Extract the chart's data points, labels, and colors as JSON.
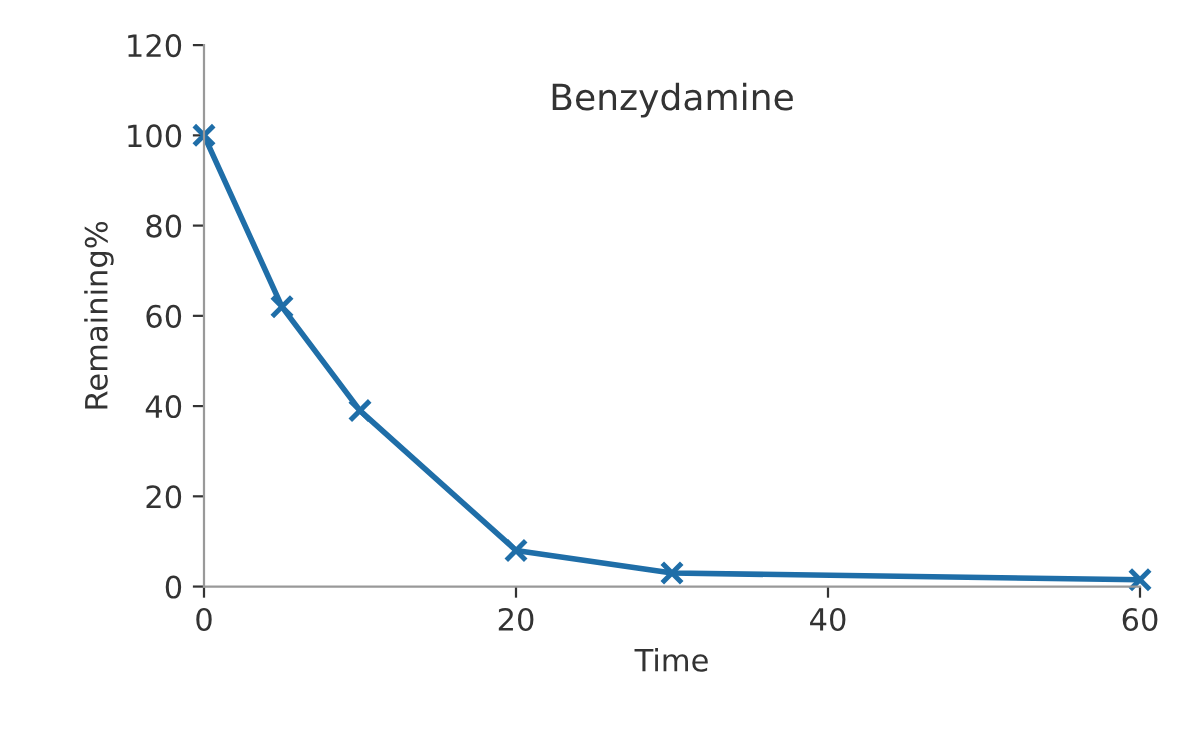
{
  "chart_data": {
    "type": "line",
    "title": "Benzydamine",
    "xlabel": "Time",
    "ylabel": "Remaining%",
    "x": [
      0,
      5,
      10,
      20,
      30,
      60
    ],
    "series": [
      {
        "color": "#1f6ea8",
        "values": [
          100,
          62,
          39,
          8,
          3,
          1.5
        ]
      }
    ],
    "xlim": [
      0,
      60
    ],
    "xticks": [
      0,
      20,
      40,
      60
    ],
    "ylim": [
      0,
      120
    ],
    "yticks": [
      0,
      20,
      40,
      60,
      80,
      100,
      120
    ],
    "marker": "cross",
    "line_style": "solid",
    "grid": false,
    "legend": false
  }
}
